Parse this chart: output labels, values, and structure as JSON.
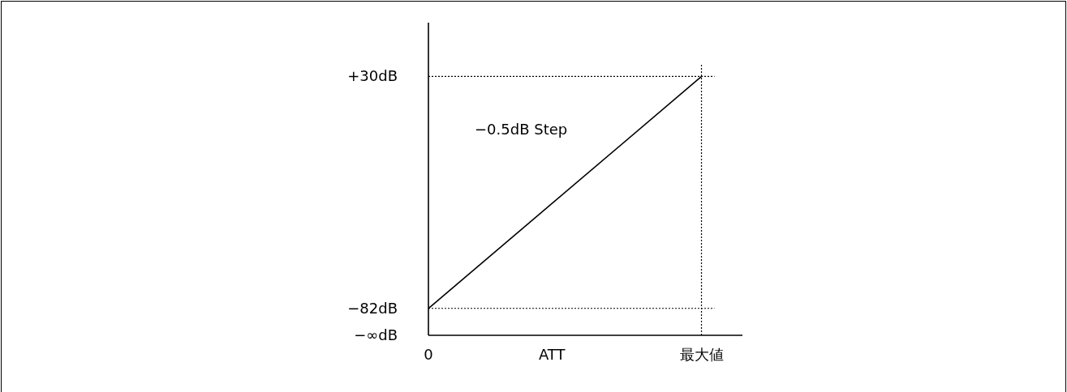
{
  "chart_data": {
    "type": "line",
    "xlabel": "ATT",
    "categories": [
      "0",
      "最大値"
    ],
    "ylim": [
      -95,
      56
    ],
    "yticks": [
      {
        "value": -95,
        "label": "−∞dB"
      },
      {
        "value": -82,
        "label": "−82dB"
      },
      {
        "value": 30,
        "label": "+30dB"
      }
    ],
    "series": [
      {
        "color": "#000000",
        "values": [
          -82,
          30
        ]
      }
    ],
    "ref_lines": [
      {
        "axis": "y",
        "value": 30,
        "line_style": "dotted"
      },
      {
        "axis": "y",
        "value": -82,
        "line_style": "dotted"
      },
      {
        "axis": "x",
        "value": "最大値",
        "line_style": "dotted"
      }
    ],
    "annotations": [
      "−0.5dB Step"
    ],
    "grid": false,
    "marker": "none",
    "line_style": "solid"
  }
}
